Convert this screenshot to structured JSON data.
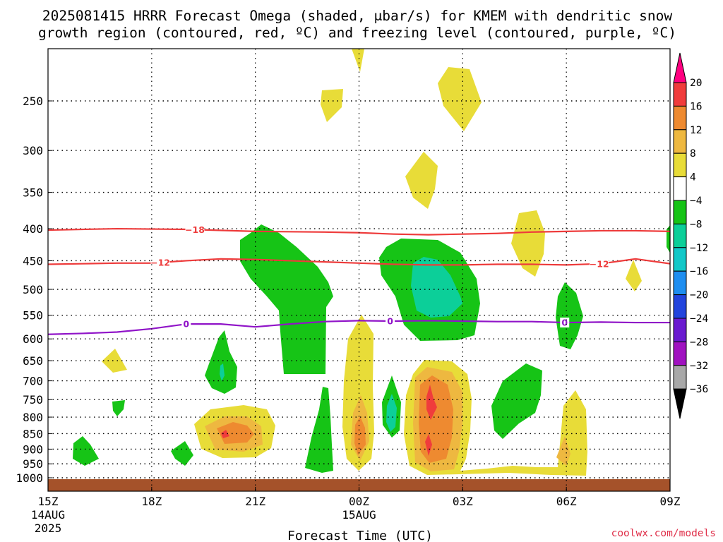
{
  "title_line1": "2025081415 HRRR Forecast Omega (shaded, μbar/s) for KMEM with dendritic snow",
  "title_line2": "growth region (contoured, red, ºC) and freezing level (contoured, purple, ºC)",
  "credit": "coolwx.com/models",
  "chart_data": {
    "type": "heatmap",
    "xlabel": "Forecast Time (UTC)",
    "x_ticks": [
      {
        "hour": 0,
        "label": "15Z",
        "sub1": "14AUG",
        "sub2": "2025"
      },
      {
        "hour": 3,
        "label": "18Z"
      },
      {
        "hour": 6,
        "label": "21Z"
      },
      {
        "hour": 9,
        "label": "00Z",
        "sub1": "15AUG"
      },
      {
        "hour": 12,
        "label": "03Z"
      },
      {
        "hour": 15,
        "label": "06Z"
      },
      {
        "hour": 18,
        "label": "09Z"
      }
    ],
    "x_range_hours": [
      0,
      18
    ],
    "y_range_hpa": [
      1040,
      200
    ],
    "y_ticks": [
      250,
      300,
      350,
      400,
      450,
      500,
      550,
      600,
      650,
      700,
      750,
      800,
      850,
      900,
      950,
      1000
    ],
    "grid": true,
    "colorbar": {
      "ticks": [
        "20",
        "16",
        "12",
        "8",
        "4",
        "−4",
        "−8",
        "−12",
        "−16",
        "−20",
        "−24",
        "−28",
        "−32",
        "−36"
      ],
      "colors": [
        "#ff0080",
        "#f03c3c",
        "#ee8a30",
        "#eeb840",
        "#e8dc38",
        "#ffffff",
        "#16c416",
        "#0ccf99",
        "#12c8c8",
        "#1e8ef0",
        "#2244dd",
        "#6a1ad0",
        "#a012c0",
        "#a8a8a8",
        "#000000"
      ]
    },
    "contours": {
      "dendritic_red": [
        {
          "label": "−18",
          "points": [
            [
              0,
              402
            ],
            [
              2,
              400
            ],
            [
              4,
              401
            ],
            [
              6,
              404
            ],
            [
              8,
              405
            ],
            [
              9,
              406
            ],
            [
              10,
              408
            ],
            [
              11,
              409
            ],
            [
              12,
              408
            ],
            [
              13,
              407
            ],
            [
              14,
              405
            ],
            [
              15,
              404
            ],
            [
              16,
              403
            ],
            [
              17,
              403
            ],
            [
              18,
              404
            ]
          ]
        },
        {
          "label": "−12",
          "points": [
            [
              0,
              456
            ],
            [
              1,
              455
            ],
            [
              2,
              454
            ],
            [
              3,
              454
            ],
            [
              4,
              450
            ],
            [
              5,
              447
            ],
            [
              6,
              448
            ],
            [
              7,
              450
            ],
            [
              8,
              452
            ],
            [
              9,
              454
            ],
            [
              10,
              456
            ],
            [
              11,
              457
            ],
            [
              12,
              457
            ],
            [
              13,
              456
            ],
            [
              14,
              456
            ],
            [
              15,
              457
            ],
            [
              16,
              455
            ],
            [
              17,
              447
            ],
            [
              18,
              455
            ]
          ]
        }
      ],
      "freezing_purple": [
        {
          "label": "0",
          "points": [
            [
              0,
              590
            ],
            [
              1,
              588
            ],
            [
              2,
              585
            ],
            [
              3,
              578
            ],
            [
              4,
              568
            ],
            [
              5,
              568
            ],
            [
              6,
              574
            ],
            [
              7,
              568
            ],
            [
              8,
              563
            ],
            [
              9,
              561
            ],
            [
              10,
              562
            ],
            [
              11,
              561
            ],
            [
              12,
              562
            ],
            [
              13,
              563
            ],
            [
              14,
              563
            ],
            [
              15,
              565
            ],
            [
              16,
              564
            ],
            [
              17,
              565
            ],
            [
              18,
              565
            ]
          ]
        }
      ]
    },
    "surface_band_from_hpa": 1005
  }
}
